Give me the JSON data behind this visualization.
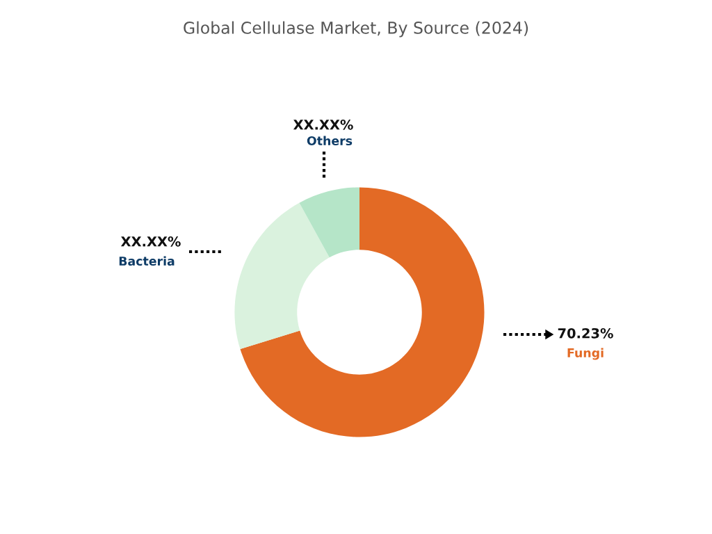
{
  "chart_data": {
    "type": "donut",
    "title": "Global Cellulase Market, By Source (2024)",
    "categories": [
      "Fungi",
      "Bacteria",
      "Others"
    ],
    "values": [
      70.23,
      21.77,
      8.0
    ],
    "colors": [
      "#e36a25",
      "#daf2de",
      "#b5e5c8"
    ],
    "value_labels": [
      "70.23%",
      "XX.XX%",
      "XX.XX%"
    ],
    "legend": false
  }
}
